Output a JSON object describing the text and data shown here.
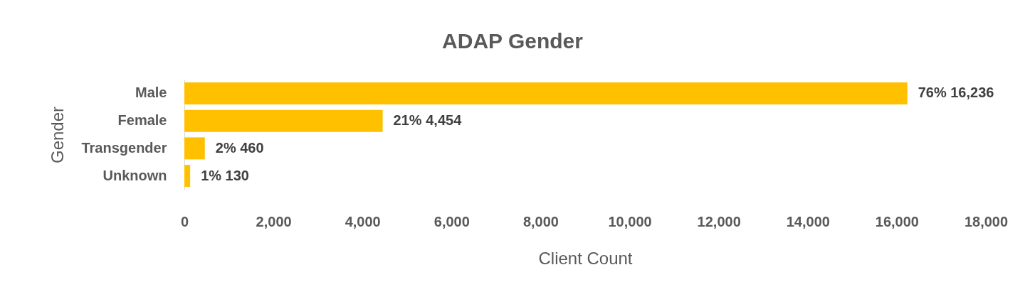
{
  "chart_data": {
    "type": "bar",
    "orientation": "horizontal",
    "title": "ADAP Gender",
    "xlabel": "Client Count",
    "ylabel": "Gender",
    "categories": [
      "Male",
      "Female",
      "Transgender",
      "Unknown"
    ],
    "values": [
      16236,
      4454,
      460,
      130
    ],
    "value_labels": [
      "76%  16,236",
      "21%  4,454",
      "2%  460",
      "1%  130"
    ],
    "color": "#ffc000",
    "xlim": [
      0,
      18000
    ],
    "xticks": [
      0,
      {
        "value": 2000,
        "label": "2,000"
      },
      {
        "value": 4000,
        "label": "4,000"
      },
      {
        "value": 6000,
        "label": "6,000"
      },
      {
        "value": 8000,
        "label": "8,000"
      },
      {
        "value": 10000,
        "label": "10,000"
      },
      {
        "value": 12000,
        "label": "12,000"
      },
      {
        "value": 14000,
        "label": "14,000"
      },
      {
        "value": 16000,
        "label": "16,000"
      },
      {
        "value": 18000,
        "label": "18,000"
      }
    ],
    "grid": false
  }
}
